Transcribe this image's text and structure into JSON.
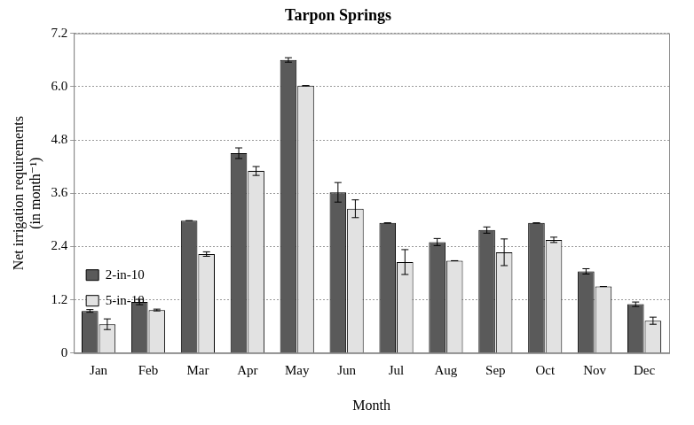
{
  "chart_data": {
    "type": "bar",
    "title": "Tarpon Springs",
    "x_label": "Month",
    "y_label": [
      "Net irrigation requirements",
      "(in month⁻¹)"
    ],
    "categories": [
      "Jan",
      "Feb",
      "Mar",
      "Apr",
      "May",
      "Jun",
      "Jul",
      "Aug",
      "Sep",
      "Oct",
      "Nov",
      "Dec"
    ],
    "series": [
      {
        "name": "2-in-10",
        "color": "#5a5a5a",
        "values": [
          0.95,
          1.15,
          2.98,
          4.5,
          6.6,
          3.62,
          2.93,
          2.5,
          2.77,
          2.93,
          1.84,
          1.1
        ],
        "errors": [
          0.03,
          0.06,
          0,
          0.12,
          0.05,
          0.22,
          0,
          0.08,
          0.07,
          0,
          0.06,
          0.05
        ]
      },
      {
        "name": "5-in-10",
        "color": "#e2e2e2",
        "values": [
          0.65,
          0.97,
          2.23,
          4.1,
          6.02,
          3.25,
          2.05,
          2.08,
          2.27,
          2.55,
          1.5,
          0.73
        ],
        "errors": [
          0.12,
          0.02,
          0.05,
          0.1,
          0,
          0.2,
          0.28,
          0,
          0.3,
          0.06,
          0,
          0.08
        ]
      }
    ],
    "ylim": [
      0,
      7.2
    ],
    "yticks": [
      0,
      1.2,
      2.4,
      3.6,
      4.8,
      {
        "value": 6,
        "label": "6.0"
      },
      7.2
    ],
    "grid": true,
    "legend": "upper right"
  }
}
